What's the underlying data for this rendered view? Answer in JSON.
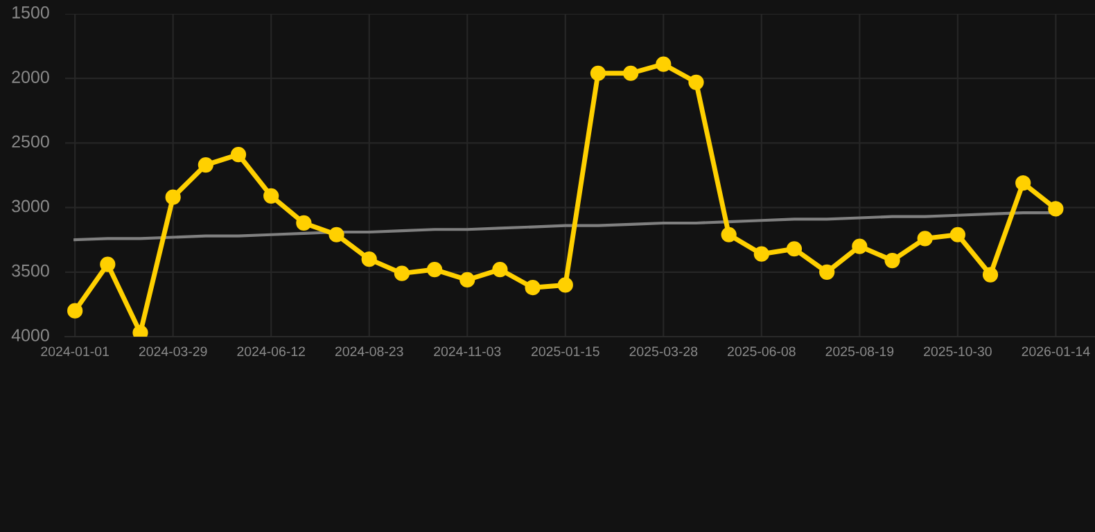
{
  "chart_data": {
    "type": "line",
    "categories": [
      "2024-01-01",
      null,
      null,
      "2024-03-29",
      null,
      null,
      "2024-06-12",
      null,
      null,
      "2024-08-23",
      null,
      null,
      "2024-11-03",
      null,
      null,
      "2025-01-15",
      null,
      null,
      "2025-03-28",
      null,
      null,
      "2025-06-08",
      null,
      null,
      "2025-08-19",
      null,
      null,
      "2025-10-30",
      null,
      null,
      "2026-01-14"
    ],
    "series": [
      {
        "color": "#ffd000",
        "marker": "circle",
        "values": [
          3800,
          3440,
          3970,
          2920,
          2670,
          2590,
          2910,
          3120,
          3210,
          3400,
          3510,
          3480,
          3560,
          3480,
          3620,
          3600,
          1960,
          1960,
          1890,
          2030,
          3210,
          3360,
          3320,
          3500,
          3300,
          3410,
          3240,
          3210,
          3520,
          2810,
          3010
        ]
      },
      {
        "color": "#808080",
        "marker": "none",
        "values": [
          3250,
          3240,
          3240,
          3230,
          3220,
          3220,
          3210,
          3200,
          3190,
          3190,
          3180,
          3170,
          3170,
          3160,
          3150,
          3140,
          3140,
          3130,
          3120,
          3120,
          3110,
          3100,
          3090,
          3090,
          3080,
          3070,
          3070,
          3060,
          3050,
          3040,
          3040
        ]
      }
    ],
    "ylim": [
      4000,
      1500
    ],
    "yticks": [
      1500,
      2000,
      2500,
      3000,
      3500,
      4000
    ],
    "grid": true
  }
}
